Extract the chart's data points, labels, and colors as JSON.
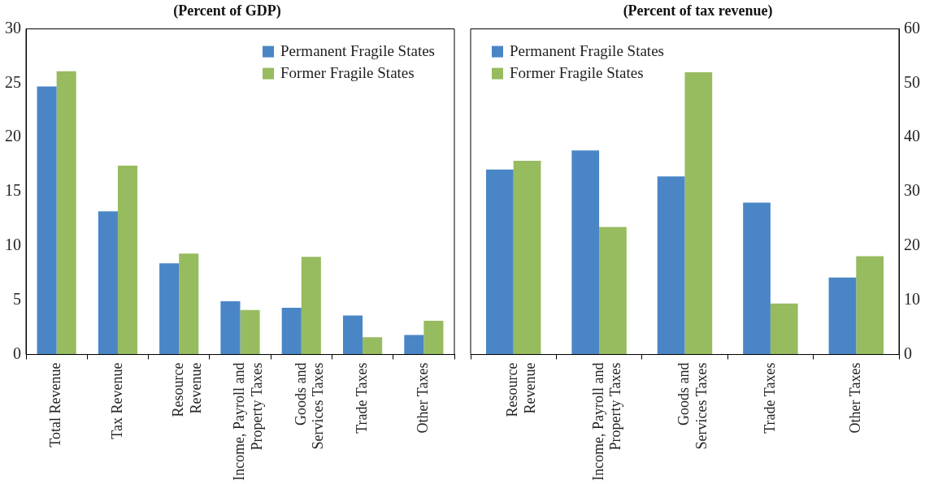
{
  "chart_data": [
    {
      "type": "bar",
      "title": "(Percent of GDP)",
      "categories": [
        "Total Revenue",
        "Tax Revenue",
        "Resource\nRevenue",
        "Income, Payroll and\nProperty Taxes",
        "Goods and\nServices Taxes",
        "Trade Taxes",
        "Other Taxes"
      ],
      "series": [
        {
          "name": "Permanent Fragile States",
          "color": "#4a86c6",
          "values": [
            24.7,
            13.2,
            8.4,
            4.9,
            4.3,
            3.6,
            1.8
          ]
        },
        {
          "name": "Former Fragile States",
          "color": "#97bb5f",
          "values": [
            26.1,
            17.4,
            9.3,
            4.1,
            9.0,
            1.6,
            3.1
          ]
        }
      ],
      "ylim": [
        0,
        30
      ],
      "yticks": [
        0,
        5,
        10,
        15,
        20,
        25,
        30
      ],
      "grid": false,
      "legend": "top right"
    },
    {
      "type": "bar",
      "title": "(Percent of tax revenue)",
      "categories": [
        "Resource\nRevenue",
        "Income, Payroll and\nProperty Taxes",
        "Goods and\nServices Taxes",
        "Trade Taxes",
        "Other Taxes"
      ],
      "series": [
        {
          "name": "Permanent Fragile States",
          "color": "#4a86c6",
          "axis": "y2",
          "values": [
            34.1,
            37.6,
            32.8,
            28.0,
            14.2
          ]
        },
        {
          "name": "Former Fragile States",
          "color": "#97bb5f",
          "axis": "y2",
          "values": [
            35.7,
            23.5,
            52.0,
            9.4,
            18.1
          ]
        }
      ],
      "y2lim": [
        0,
        60
      ],
      "y2ticks": [
        0,
        10,
        20,
        30,
        40,
        50,
        60
      ],
      "grid": false,
      "legend": "top left"
    }
  ]
}
